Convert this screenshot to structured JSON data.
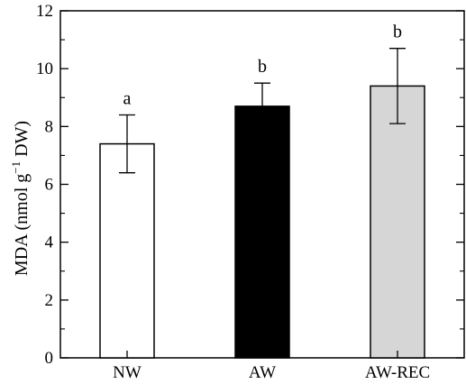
{
  "chart_data": {
    "type": "bar",
    "categories": [
      "NW",
      "AW",
      "AW-REC"
    ],
    "values": [
      7.4,
      8.7,
      9.4
    ],
    "errors": [
      1.0,
      0.8,
      1.3
    ],
    "significance": [
      "a",
      "b",
      "b"
    ],
    "bar_colors": [
      "#ffffff",
      "#000000",
      "#d6d6d6"
    ],
    "ylabel": {
      "base": "MDA (nmol g",
      "sup": "−1",
      "tail": " DW)"
    },
    "ylim": [
      0,
      12
    ],
    "yticks": [
      "0",
      "2",
      "4",
      "6",
      "8",
      "10",
      "12"
    ],
    "grid": false,
    "legend": "none"
  }
}
